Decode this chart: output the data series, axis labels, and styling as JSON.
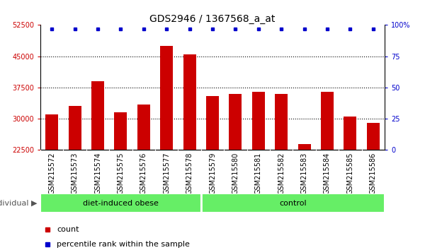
{
  "title": "GDS2946 / 1367568_a_at",
  "samples": [
    "GSM215572",
    "GSM215573",
    "GSM215574",
    "GSM215575",
    "GSM215576",
    "GSM215577",
    "GSM215578",
    "GSM215579",
    "GSM215580",
    "GSM215581",
    "GSM215582",
    "GSM215583",
    "GSM215584",
    "GSM215585",
    "GSM215586"
  ],
  "counts": [
    31000,
    33000,
    39000,
    31500,
    33500,
    47500,
    45500,
    35500,
    36000,
    36500,
    36000,
    24000,
    36500,
    30500,
    29000
  ],
  "bar_color": "#cc0000",
  "dot_color": "#0000cc",
  "ylim_left": [
    22500,
    52500
  ],
  "ylim_right": [
    0,
    100
  ],
  "yticks_left": [
    22500,
    30000,
    37500,
    45000,
    52500
  ],
  "yticks_right": [
    0,
    25,
    50,
    75,
    100
  ],
  "grid_lines": [
    30000,
    37500,
    45000
  ],
  "group1_label": "diet-induced obese",
  "group1_count": 7,
  "group2_label": "control",
  "group2_count": 8,
  "group_bar_color": "#66ee66",
  "individual_label": "individual",
  "legend_count_label": "count",
  "legend_pct_label": "percentile rank within the sample",
  "title_fontsize": 10,
  "tick_fontsize": 7,
  "label_fontsize": 8,
  "xtick_bg_color": "#c8c8c8",
  "plot_bg": "#ffffff",
  "fig_bg": "#ffffff"
}
